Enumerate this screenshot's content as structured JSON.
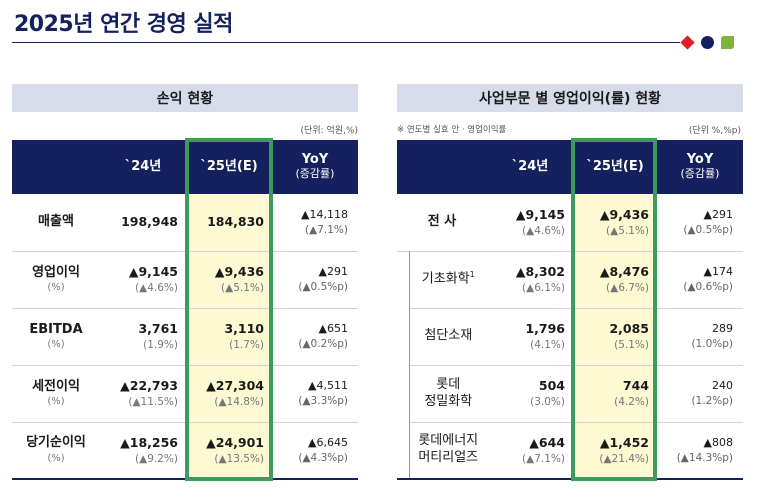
{
  "page": {
    "title": "2025년 연간 경영 실적",
    "brand_colors": {
      "navy": "#14215e",
      "red": "#e21e2a",
      "green": "#7fb43a",
      "highlight": "#3f9a5d"
    }
  },
  "left": {
    "header": "손익 현황",
    "unit": "(단위: 억원,%)",
    "columns": {
      "c1": "`24년",
      "c2": "`25년(E)",
      "c3": "YoY",
      "c3_sub": "(증감률)"
    },
    "rows": [
      {
        "label": "매출액",
        "pct": "",
        "v24": "198,948",
        "v24s": "",
        "v25": "184,830",
        "v25s": "",
        "yoy": "▲14,118",
        "yoys": "(▲7.1%)"
      },
      {
        "label": "영업이익",
        "pct": "(%)",
        "v24": "▲9,145",
        "v24s": "(▲4.6%)",
        "v25": "▲9,436",
        "v25s": "(▲5.1%)",
        "yoy": "▲291",
        "yoys": "(▲0.5%p)"
      },
      {
        "label": "EBITDA",
        "pct": "(%)",
        "v24": "3,761",
        "v24s": "(1.9%)",
        "v25": "3,110",
        "v25s": "(1.7%)",
        "yoy": "▲651",
        "yoys": "(▲0.2%p)"
      },
      {
        "label": "세전이익",
        "pct": "(%)",
        "v24": "▲22,793",
        "v24s": "(▲11.5%)",
        "v25": "▲27,304",
        "v25s": "(▲14.8%)",
        "yoy": "▲4,511",
        "yoys": "(▲3.3%p)"
      },
      {
        "label": "당기순이익",
        "pct": "(%)",
        "v24": "▲18,256",
        "v24s": "(▲9.2%)",
        "v25": "▲24,901",
        "v25s": "(▲13.5%)",
        "yoy": "▲6,645",
        "yoys": "(▲4.3%p)"
      }
    ]
  },
  "right": {
    "header": "사업부문 별 영업이익(률) 현황",
    "note": "※ 연도별 실효 안 · 영업이익률",
    "unit": "(단위 %,%p)",
    "columns": {
      "c1": "`24년",
      "c2": "`25년(E)",
      "c3": "YoY",
      "c3_sub": "(증감률)"
    },
    "total": {
      "label": "전 사",
      "v24": "▲9,145",
      "v24s": "(▲4.6%)",
      "v25": "▲9,436",
      "v25s": "(▲5.1%)",
      "yoy": "▲291",
      "yoys": "(▲0.5%p)"
    },
    "rows": [
      {
        "label": "기초화학",
        "sup": "1",
        "label2": "",
        "v24": "▲8,302",
        "v24s": "(▲6.1%)",
        "v25": "▲8,476",
        "v25s": "(▲6.7%)",
        "yoy": "▲174",
        "yoys": "(▲0.6%p)"
      },
      {
        "label": "첨단소재",
        "sup": "",
        "label2": "",
        "v24": "1,796",
        "v24s": "(4.1%)",
        "v25": "2,085",
        "v25s": "(5.1%)",
        "yoy": "289",
        "yoys": "(1.0%p)"
      },
      {
        "label": "롯데",
        "sup": "",
        "label2": "정밀화학",
        "v24": "504",
        "v24s": "(3.0%)",
        "v25": "744",
        "v25s": "(4.2%)",
        "yoy": "240",
        "yoys": "(1.2%p)"
      },
      {
        "label": "롯데에너지",
        "sup": "",
        "label2": "머티리얼즈",
        "v24": "▲644",
        "v24s": "(▲7.1%)",
        "v25": "▲1,452",
        "v25s": "(▲21.4%)",
        "yoy": "▲808",
        "yoys": "(▲14.3%p)"
      }
    ]
  }
}
